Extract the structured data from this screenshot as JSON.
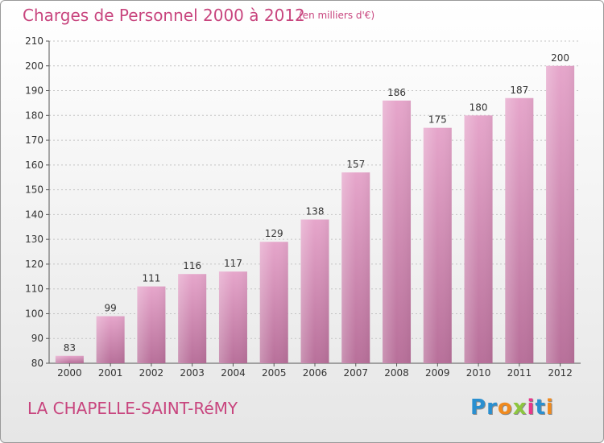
{
  "header": {
    "title": "Charges de Personnel 2000 à 2012",
    "subtitle": "(en milliers d'€)"
  },
  "footer": {
    "commune": "LA CHAPELLE-SAINT-RéMY",
    "logo_letters": [
      "P",
      "r",
      "o",
      "x",
      "i",
      "t",
      "i"
    ],
    "logo_colors": [
      "#2a8fd0",
      "#2a8fd0",
      "#f08a1e",
      "#8dc63f",
      "#e8378a",
      "#2a8fd0",
      "#f08a1e"
    ]
  },
  "chart_data": {
    "type": "bar",
    "title": "Charges de Personnel 2000 à 2012",
    "categories": [
      "2000",
      "2001",
      "2002",
      "2003",
      "2004",
      "2005",
      "2006",
      "2007",
      "2008",
      "2009",
      "2010",
      "2011",
      "2012"
    ],
    "values": [
      83,
      99,
      111,
      116,
      117,
      129,
      138,
      157,
      186,
      175,
      180,
      187,
      200
    ],
    "ylim": [
      80,
      210
    ],
    "yticks": [
      80,
      90,
      100,
      110,
      120,
      130,
      140,
      150,
      160,
      170,
      180,
      190,
      200,
      210
    ],
    "grid": true,
    "bar_color": "#d889b4",
    "text_color": "#c8457e"
  }
}
